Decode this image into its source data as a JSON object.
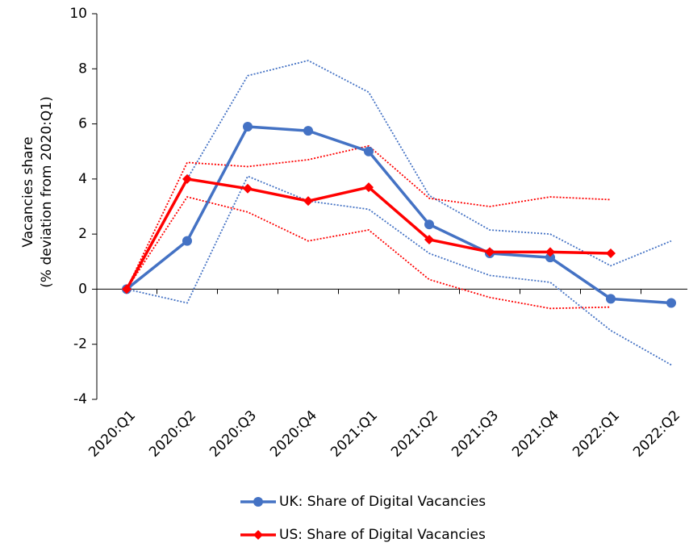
{
  "chart_data": {
    "type": "line",
    "y_label_lines": [
      "Vacancies share",
      "(% deviation from 2020:Q1)"
    ],
    "categories": [
      "2020:Q1",
      "2020:Q2",
      "2020:Q3",
      "2020:Q4",
      "2021:Q1",
      "2021:Q2",
      "2021:Q3",
      "2021:Q4",
      "2022:Q1",
      "2022:Q2"
    ],
    "ylim": [
      -4,
      10
    ],
    "yticks": [
      -4,
      -2,
      0,
      2,
      4,
      6,
      8,
      10
    ],
    "grid": false,
    "legend": "bottom",
    "series": [
      {
        "name": "UK: Share of Digital Vacancies",
        "color": "#4472c4",
        "marker": "circle",
        "values": [
          0,
          1.75,
          5.9,
          5.75,
          5.0,
          2.35,
          1.3,
          1.15,
          -0.35,
          -0.5
        ],
        "upper": [
          0,
          4.0,
          7.75,
          8.3,
          7.15,
          3.4,
          2.15,
          2.0,
          0.85,
          1.75
        ],
        "lower": [
          0,
          -0.5,
          4.1,
          3.2,
          2.9,
          1.3,
          0.5,
          0.25,
          -1.5,
          -2.75
        ]
      },
      {
        "name": "US: Share of Digital Vacancies",
        "color": "#ff0000",
        "marker": "diamond",
        "values": [
          0,
          4.0,
          3.65,
          3.2,
          3.7,
          1.8,
          1.35,
          1.35,
          1.3,
          null
        ],
        "upper": [
          0,
          4.6,
          4.45,
          4.7,
          5.2,
          3.3,
          3.0,
          3.35,
          3.25,
          null
        ],
        "lower": [
          0,
          3.35,
          2.8,
          1.75,
          2.15,
          0.35,
          -0.3,
          -0.7,
          -0.65,
          null
        ]
      }
    ]
  }
}
